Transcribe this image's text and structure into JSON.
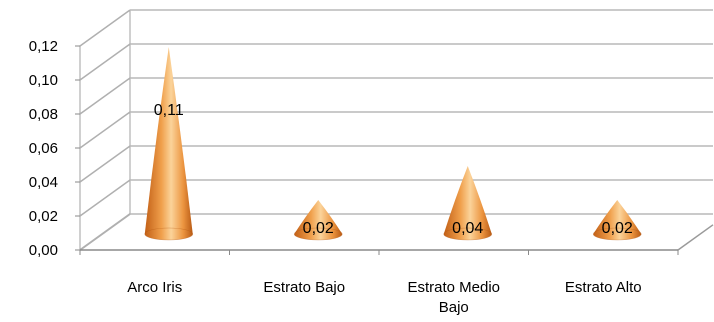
{
  "chart_data": {
    "type": "bar",
    "bar_shape": "cone",
    "style": "3d",
    "categories": [
      "Arco Iris",
      "Estrato Bajo",
      "Estrato Medio Bajo",
      "Estrato Alto"
    ],
    "category_lines": [
      [
        "Arco Iris"
      ],
      [
        "Estrato Bajo"
      ],
      [
        "Estrato Medio",
        "Bajo"
      ],
      [
        "Estrato Alto"
      ]
    ],
    "values": [
      0.11,
      0.02,
      0.04,
      0.02
    ],
    "value_labels": [
      "0,11",
      "0,02",
      "0,04",
      "0,02"
    ],
    "yticks": [
      "0,00",
      "0,02",
      "0,04",
      "0,06",
      "0,08",
      "0,10",
      "0,12"
    ],
    "ylim": [
      0,
      0.12
    ],
    "grid": true,
    "legend": "none",
    "colors": {
      "cone_dark": "#c8661a",
      "cone_mid": "#f2a24e",
      "cone_light": "#fbd7a0",
      "grid": "#b0b0b0",
      "wall": "#9a9a9a"
    }
  }
}
